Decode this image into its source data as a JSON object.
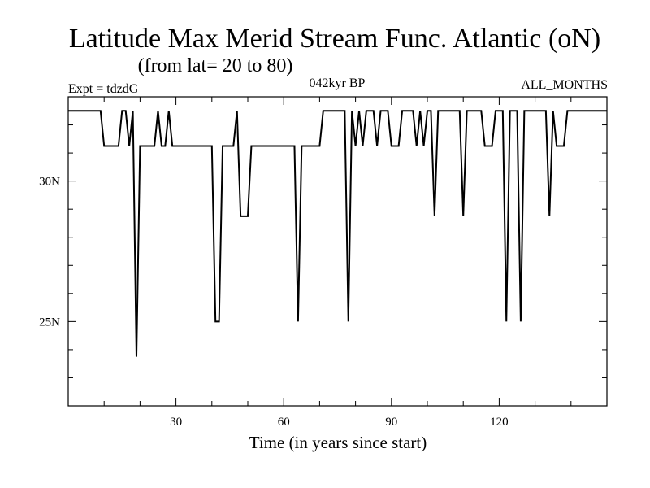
{
  "chart_data": {
    "type": "line",
    "title": "Latitude Max Merid Stream Func. Atlantic (oN)",
    "subtitle": "(from lat= 20 to 80)",
    "experiment": "Expt = tdzdG",
    "period": "042kyr BP",
    "months": "ALL_MONTHS",
    "xlabel": "Time (in years since start)",
    "ylabel": "",
    "xlim": [
      0,
      150
    ],
    "ylim": [
      22,
      33
    ],
    "xticks": [
      30,
      60,
      90,
      120
    ],
    "xtick_labels": [
      "30",
      "60",
      "90",
      "120"
    ],
    "yticks": [
      25,
      30
    ],
    "ytick_labels": [
      "25N",
      "30N"
    ],
    "series": [
      {
        "name": "Latitude Max",
        "points": [
          [
            0,
            32.5
          ],
          [
            9,
            32.5
          ],
          [
            10,
            31.25
          ],
          [
            14,
            31.25
          ],
          [
            15,
            32.5
          ],
          [
            16,
            32.5
          ],
          [
            17,
            31.25
          ],
          [
            18,
            32.5
          ],
          [
            19,
            23.75
          ],
          [
            20,
            31.25
          ],
          [
            24,
            31.25
          ],
          [
            25,
            32.5
          ],
          [
            26,
            31.25
          ],
          [
            27,
            31.25
          ],
          [
            28,
            32.5
          ],
          [
            29,
            31.25
          ],
          [
            40,
            31.25
          ],
          [
            41,
            25
          ],
          [
            42,
            25
          ],
          [
            43,
            31.25
          ],
          [
            46,
            31.25
          ],
          [
            47,
            32.5
          ],
          [
            48,
            28.75
          ],
          [
            50,
            28.75
          ],
          [
            51,
            31.25
          ],
          [
            63,
            31.25
          ],
          [
            64,
            25
          ],
          [
            65,
            31.25
          ],
          [
            70,
            31.25
          ],
          [
            71,
            32.5
          ],
          [
            77,
            32.5
          ],
          [
            78,
            25
          ],
          [
            79,
            32.5
          ],
          [
            80,
            31.25
          ],
          [
            81,
            32.5
          ],
          [
            82,
            31.25
          ],
          [
            83,
            32.5
          ],
          [
            85,
            32.5
          ],
          [
            86,
            31.25
          ],
          [
            87,
            32.5
          ],
          [
            89,
            32.5
          ],
          [
            90,
            31.25
          ],
          [
            92,
            31.25
          ],
          [
            93,
            32.5
          ],
          [
            96,
            32.5
          ],
          [
            97,
            31.25
          ],
          [
            98,
            32.5
          ],
          [
            99,
            31.25
          ],
          [
            100,
            32.5
          ],
          [
            101,
            32.5
          ],
          [
            102,
            28.75
          ],
          [
            103,
            32.5
          ],
          [
            109,
            32.5
          ],
          [
            110,
            28.75
          ],
          [
            111,
            32.5
          ],
          [
            115,
            32.5
          ],
          [
            116,
            31.25
          ],
          [
            118,
            31.25
          ],
          [
            119,
            32.5
          ],
          [
            121,
            32.5
          ],
          [
            122,
            25
          ],
          [
            123,
            32.5
          ],
          [
            125,
            32.5
          ],
          [
            126,
            25
          ],
          [
            127,
            32.5
          ],
          [
            133,
            32.5
          ],
          [
            134,
            28.75
          ],
          [
            135,
            32.5
          ],
          [
            136,
            31.25
          ],
          [
            138,
            31.25
          ],
          [
            139,
            32.5
          ],
          [
            150,
            32.5
          ]
        ]
      }
    ]
  }
}
